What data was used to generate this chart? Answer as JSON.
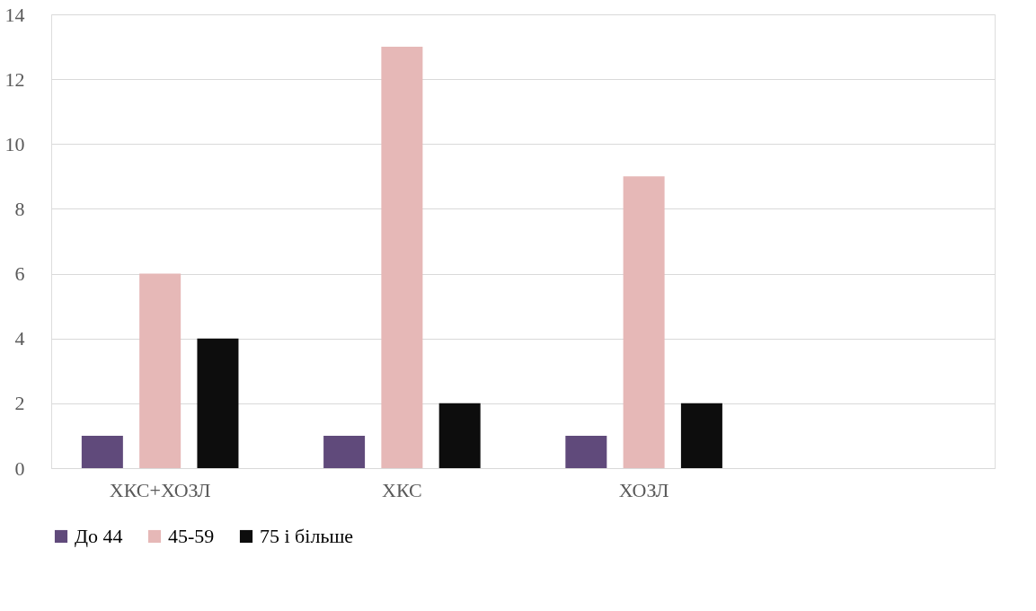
{
  "chart_data": {
    "type": "bar",
    "categories": [
      "ХКС+ХОЗЛ",
      "ХКС",
      "ХОЗЛ",
      null
    ],
    "series": [
      {
        "name": "До 44",
        "color": "#604a7b",
        "values": [
          1,
          1,
          1,
          null
        ]
      },
      {
        "name": "45-59",
        "color": "#e6b8b7",
        "values": [
          6,
          13,
          9,
          null
        ]
      },
      {
        "name": "75 і більше",
        "color": "#0d0d0d",
        "values": [
          4,
          2,
          2,
          null
        ]
      }
    ],
    "ylim": [
      0,
      14
    ],
    "yticks": [
      0,
      2,
      4,
      6,
      8,
      10,
      12,
      14
    ],
    "grid": "y",
    "legend": "bottom"
  }
}
